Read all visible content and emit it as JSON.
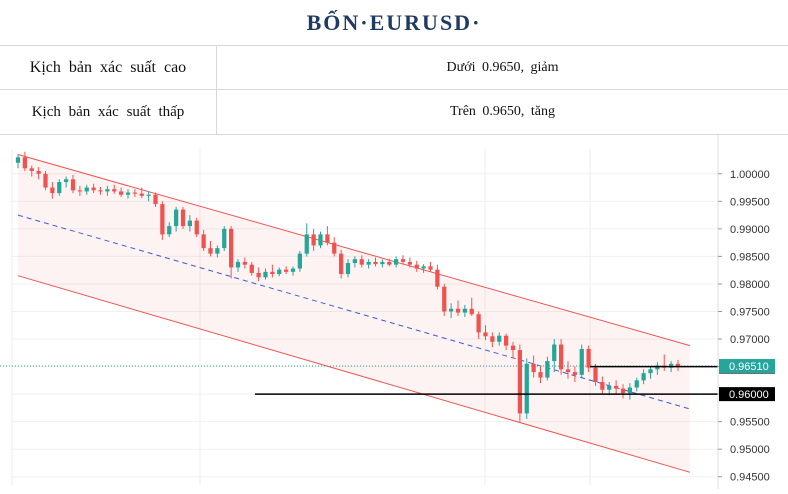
{
  "title": "BỐN·EURUSD·",
  "table": [
    {
      "label": "Kịch bản xác suất cao",
      "value": "Dưới 0.9650, giảm"
    },
    {
      "label": "Kịch bản xác suất thấp",
      "value": "Trên 0.9650, tăng"
    }
  ],
  "chart_data": {
    "type": "candlestick",
    "symbol": "EURUSD",
    "ylim": [
      0.9435,
      1.0045
    ],
    "yticks": [
      "1.00000",
      "0.99500",
      "0.99000",
      "0.98500",
      "0.98000",
      "0.97500",
      "0.97000",
      "0.96500",
      "0.96000",
      "0.95500",
      "0.95000",
      "0.94500"
    ],
    "last_price": 0.9651,
    "last_price_label": "0.96510",
    "levels": [
      {
        "value": 0.965,
        "label": "0.96500",
        "color": "#000000"
      },
      {
        "value": 0.96,
        "label": "0.96000",
        "color": "#000000"
      }
    ],
    "channel": {
      "upper": {
        "start": 1.0035,
        "end": 0.9688
      },
      "lower": {
        "start": 0.9815,
        "end": 0.9458
      },
      "mid": {
        "start": 0.9925,
        "end": 0.9573
      }
    },
    "colors": {
      "up": "#26a69a",
      "down": "#ef5350",
      "channel": "#ef5350",
      "mid": "#3b5bdb",
      "last": "#26a69a"
    },
    "candles": [
      [
        1.002,
        1.0035,
        1.001,
        1.003
      ],
      [
        1.003,
        1.004,
        1.0005,
        1.001
      ],
      [
        1.001,
        1.0015,
        0.9995,
        1.0005
      ],
      [
        1.0005,
        1.0012,
        0.999,
        1.0
      ],
      [
        1.0,
        1.0005,
        0.997,
        0.9975
      ],
      [
        0.9975,
        0.9985,
        0.9955,
        0.9965
      ],
      [
        0.9965,
        0.999,
        0.996,
        0.9985
      ],
      [
        0.9985,
        0.9995,
        0.9975,
        0.999
      ],
      [
        0.999,
        0.9998,
        0.9965,
        0.997
      ],
      [
        0.997,
        0.9978,
        0.996,
        0.9968
      ],
      [
        0.9968,
        0.998,
        0.9962,
        0.9975
      ],
      [
        0.9975,
        0.9982,
        0.9965,
        0.997
      ],
      [
        0.997,
        0.9976,
        0.9962,
        0.9968
      ],
      [
        0.9968,
        0.9978,
        0.996,
        0.9972
      ],
      [
        0.9972,
        0.998,
        0.9964,
        0.9968
      ],
      [
        0.9968,
        0.9975,
        0.9958,
        0.9962
      ],
      [
        0.9962,
        0.9972,
        0.9955,
        0.9966
      ],
      [
        0.9966,
        0.9972,
        0.9958,
        0.9964
      ],
      [
        0.9964,
        0.9975,
        0.9956,
        0.996
      ],
      [
        0.996,
        0.9968,
        0.995,
        0.9962
      ],
      [
        0.9962,
        0.9966,
        0.994,
        0.9945
      ],
      [
        0.9945,
        0.995,
        0.988,
        0.989
      ],
      [
        0.989,
        0.9912,
        0.9885,
        0.9905
      ],
      [
        0.9905,
        0.994,
        0.9895,
        0.9935
      ],
      [
        0.9935,
        0.994,
        0.99,
        0.9905
      ],
      [
        0.9905,
        0.9925,
        0.9895,
        0.9915
      ],
      [
        0.9915,
        0.992,
        0.9885,
        0.989
      ],
      [
        0.989,
        0.9898,
        0.986,
        0.9865
      ],
      [
        0.9865,
        0.9878,
        0.985,
        0.9855
      ],
      [
        0.9855,
        0.987,
        0.9848,
        0.9865
      ],
      [
        0.9865,
        0.9905,
        0.986,
        0.99
      ],
      [
        0.99,
        0.9905,
        0.981,
        0.983
      ],
      [
        0.983,
        0.9845,
        0.9822,
        0.984
      ],
      [
        0.984,
        0.9848,
        0.9828,
        0.9835
      ],
      [
        0.9835,
        0.984,
        0.9815,
        0.982
      ],
      [
        0.982,
        0.983,
        0.9805,
        0.9812
      ],
      [
        0.9812,
        0.9828,
        0.9808,
        0.9822
      ],
      [
        0.9822,
        0.9835,
        0.9812,
        0.9818
      ],
      [
        0.9818,
        0.983,
        0.9814,
        0.9826
      ],
      [
        0.9826,
        0.9832,
        0.9818,
        0.9822
      ],
      [
        0.9822,
        0.9832,
        0.9815,
        0.9828
      ],
      [
        0.9828,
        0.986,
        0.9822,
        0.9855
      ],
      [
        0.9855,
        0.991,
        0.985,
        0.989
      ],
      [
        0.989,
        0.99,
        0.986,
        0.987
      ],
      [
        0.987,
        0.9895,
        0.9865,
        0.989
      ],
      [
        0.989,
        0.9905,
        0.987,
        0.9875
      ],
      [
        0.9875,
        0.9885,
        0.985,
        0.9855
      ],
      [
        0.9855,
        0.9862,
        0.981,
        0.9818
      ],
      [
        0.9818,
        0.9845,
        0.9812,
        0.9838
      ],
      [
        0.9838,
        0.985,
        0.983,
        0.9845
      ],
      [
        0.9845,
        0.9852,
        0.983,
        0.9835
      ],
      [
        0.9835,
        0.9845,
        0.9828,
        0.984
      ],
      [
        0.984,
        0.9848,
        0.9832,
        0.9836
      ],
      [
        0.9836,
        0.9845,
        0.983,
        0.984
      ],
      [
        0.984,
        0.9846,
        0.9832,
        0.9835
      ],
      [
        0.9835,
        0.985,
        0.983,
        0.9845
      ],
      [
        0.9845,
        0.9852,
        0.9835,
        0.984
      ],
      [
        0.984,
        0.9848,
        0.983,
        0.9835
      ],
      [
        0.9835,
        0.9842,
        0.9822,
        0.9828
      ],
      [
        0.9828,
        0.9836,
        0.982,
        0.9832
      ],
      [
        0.9832,
        0.984,
        0.9822,
        0.9826
      ],
      [
        0.9826,
        0.9835,
        0.979,
        0.9795
      ],
      [
        0.9795,
        0.98,
        0.9742,
        0.975
      ],
      [
        0.975,
        0.9765,
        0.9738,
        0.9755
      ],
      [
        0.9755,
        0.977,
        0.9742,
        0.9748
      ],
      [
        0.9748,
        0.9762,
        0.974,
        0.9755
      ],
      [
        0.9755,
        0.9775,
        0.9742,
        0.9745
      ],
      [
        0.9745,
        0.975,
        0.97,
        0.9712
      ],
      [
        0.9712,
        0.9725,
        0.9698,
        0.9705
      ],
      [
        0.9705,
        0.9712,
        0.9685,
        0.9695
      ],
      [
        0.9695,
        0.9712,
        0.9688,
        0.9706
      ],
      [
        0.9706,
        0.971,
        0.968,
        0.9688
      ],
      [
        0.9688,
        0.9695,
        0.9665,
        0.968
      ],
      [
        0.968,
        0.969,
        0.955,
        0.9565
      ],
      [
        0.9565,
        0.9665,
        0.9555,
        0.9655
      ],
      [
        0.9655,
        0.967,
        0.963,
        0.964
      ],
      [
        0.964,
        0.965,
        0.962,
        0.963
      ],
      [
        0.963,
        0.9668,
        0.9625,
        0.966
      ],
      [
        0.966,
        0.97,
        0.964,
        0.969
      ],
      [
        0.969,
        0.97,
        0.9635,
        0.9645
      ],
      [
        0.9645,
        0.966,
        0.9628,
        0.964
      ],
      [
        0.964,
        0.965,
        0.9622,
        0.9635
      ],
      [
        0.9635,
        0.969,
        0.963,
        0.9682
      ],
      [
        0.9682,
        0.9688,
        0.964,
        0.9648
      ],
      [
        0.9648,
        0.9655,
        0.9615,
        0.9622
      ],
      [
        0.9622,
        0.9632,
        0.96,
        0.9608
      ],
      [
        0.9608,
        0.9622,
        0.9598,
        0.9615
      ],
      [
        0.9615,
        0.9625,
        0.96,
        0.961
      ],
      [
        0.961,
        0.9618,
        0.9592,
        0.9602
      ],
      [
        0.9602,
        0.962,
        0.959,
        0.9612
      ],
      [
        0.9612,
        0.963,
        0.9605,
        0.9625
      ],
      [
        0.9625,
        0.9645,
        0.9618,
        0.9638
      ],
      [
        0.9638,
        0.965,
        0.9628,
        0.9645
      ],
      [
        0.9645,
        0.9658,
        0.9635,
        0.9652
      ],
      [
        0.9652,
        0.9672,
        0.9642,
        0.9648
      ],
      [
        0.9648,
        0.966,
        0.964,
        0.9655
      ],
      [
        0.9655,
        0.9662,
        0.9642,
        0.9651
      ]
    ]
  }
}
